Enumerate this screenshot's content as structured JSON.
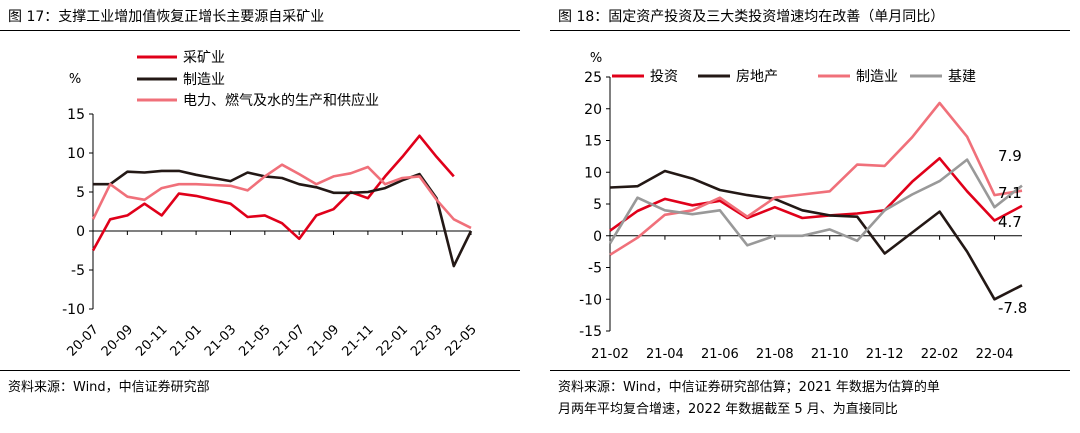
{
  "charts": [
    {
      "figure_title": "图 17：支撑工业增加值恢复正增长主要源自采矿业",
      "source": "资料来源：Wind，中信证券研究部",
      "chart_data": {
        "type": "line",
        "unit": "%",
        "categories": [
          "20-07",
          "20-08",
          "20-09",
          "20-10",
          "20-11",
          "20-12",
          "21-01",
          "21-02",
          "21-03",
          "21-04",
          "21-05",
          "21-06",
          "21-07",
          "21-08",
          "21-09",
          "21-10",
          "21-11",
          "21-12",
          "22-01",
          "22-02",
          "22-03",
          "22-04",
          "22-05"
        ],
        "xtick_labels": [
          "20-07",
          "20-09",
          "20-11",
          "21-01",
          "21-03",
          "21-05",
          "21-07",
          "21-09",
          "21-11",
          "22-01",
          "22-03",
          "22-05"
        ],
        "ylim": [
          -10,
          15
        ],
        "yticks": [
          15,
          10,
          5,
          0,
          -5,
          -10
        ],
        "legend_position": "top-left",
        "series": [
          {
            "name": "采矿业",
            "color": "#e0001a",
            "values": [
              -2.5,
              1.5,
              2.0,
              3.5,
              2.0,
              4.8,
              4.5,
              4.0,
              3.5,
              1.8,
              2.0,
              1.0,
              -1.0,
              2.0,
              2.8,
              5.0,
              4.2,
              7.0,
              9.5,
              12.2,
              9.5,
              7.0,
              null
            ]
          },
          {
            "name": "制造业",
            "color": "#231815",
            "values": [
              6.0,
              6.0,
              7.6,
              7.5,
              7.7,
              7.7,
              7.2,
              6.8,
              6.4,
              7.5,
              7.0,
              6.8,
              6.0,
              5.6,
              4.9,
              4.9,
              5.0,
              5.5,
              6.5,
              7.3,
              4.2,
              -4.5,
              0.0
            ]
          },
          {
            "name": "电力、燃气及水的生产和供应业",
            "color": "#f0707a",
            "values": [
              1.5,
              6.0,
              4.4,
              4.0,
              5.5,
              6.0,
              6.0,
              5.9,
              5.8,
              5.2,
              7.0,
              8.5,
              7.3,
              6.0,
              7.0,
              7.4,
              8.2,
              6.0,
              6.8,
              7.0,
              4.0,
              1.5,
              0.4
            ]
          }
        ]
      }
    },
    {
      "figure_title": "图 18：固定资产投资及三大类投资增速均在改善（单月同比）",
      "source_lines": [
        "资料来源：Wind，中信证券研究部估算；2021 年数据为估算的单",
        "月两年平均复合增速，2022 年数据截至 5 月、为直接同比"
      ],
      "chart_data": {
        "type": "line",
        "unit": "%",
        "categories": [
          "21-02",
          "21-03",
          "21-04",
          "21-05",
          "21-06",
          "21-07",
          "21-08",
          "21-09",
          "21-10",
          "21-11",
          "21-12",
          "22-01",
          "22-02",
          "22-03",
          "22-04",
          "22-05"
        ],
        "xtick_labels": [
          "21-02",
          "21-04",
          "21-06",
          "21-08",
          "21-10",
          "21-12",
          "22-02",
          "22-04"
        ],
        "ylim": [
          -15,
          25
        ],
        "yticks": [
          25,
          20,
          15,
          10,
          5,
          0,
          -5,
          -10,
          -15
        ],
        "legend_position": "top",
        "series": [
          {
            "name": "投资",
            "color": "#e0001a",
            "values": [
              0.8,
              3.9,
              5.8,
              4.8,
              5.5,
              2.8,
              4.5,
              2.8,
              3.2,
              3.5,
              4.0,
              8.5,
              12.2,
              7.0,
              2.4,
              4.7
            ]
          },
          {
            "name": "房地产",
            "color": "#231815",
            "values": [
              7.6,
              7.8,
              10.2,
              9.0,
              7.2,
              6.4,
              5.8,
              4.0,
              3.2,
              3.0,
              -2.8,
              0.5,
              3.8,
              -2.5,
              -10.0,
              -7.8
            ]
          },
          {
            "name": "制造业",
            "color": "#f0707a",
            "values": [
              -3.0,
              -0.3,
              3.3,
              4.0,
              6.0,
              3.0,
              6.0,
              6.5,
              7.0,
              11.2,
              11.0,
              15.5,
              20.9,
              15.6,
              6.4,
              7.1
            ]
          },
          {
            "name": "基建",
            "color": "#999999",
            "values": [
              -1.2,
              6.0,
              4.0,
              3.4,
              4.0,
              -1.5,
              0.0,
              0.0,
              1.0,
              -0.8,
              4.0,
              6.5,
              8.6,
              12.0,
              4.5,
              7.9
            ]
          }
        ],
        "annotations": [
          {
            "text": "7.9",
            "series": "基建",
            "value": 7.9
          },
          {
            "text": "7.1",
            "series": "制造业",
            "value": 7.1
          },
          {
            "text": "4.7",
            "series": "投资",
            "value": 4.7
          },
          {
            "text": "-7.8",
            "series": "房地产",
            "value": -7.8
          }
        ]
      }
    }
  ]
}
